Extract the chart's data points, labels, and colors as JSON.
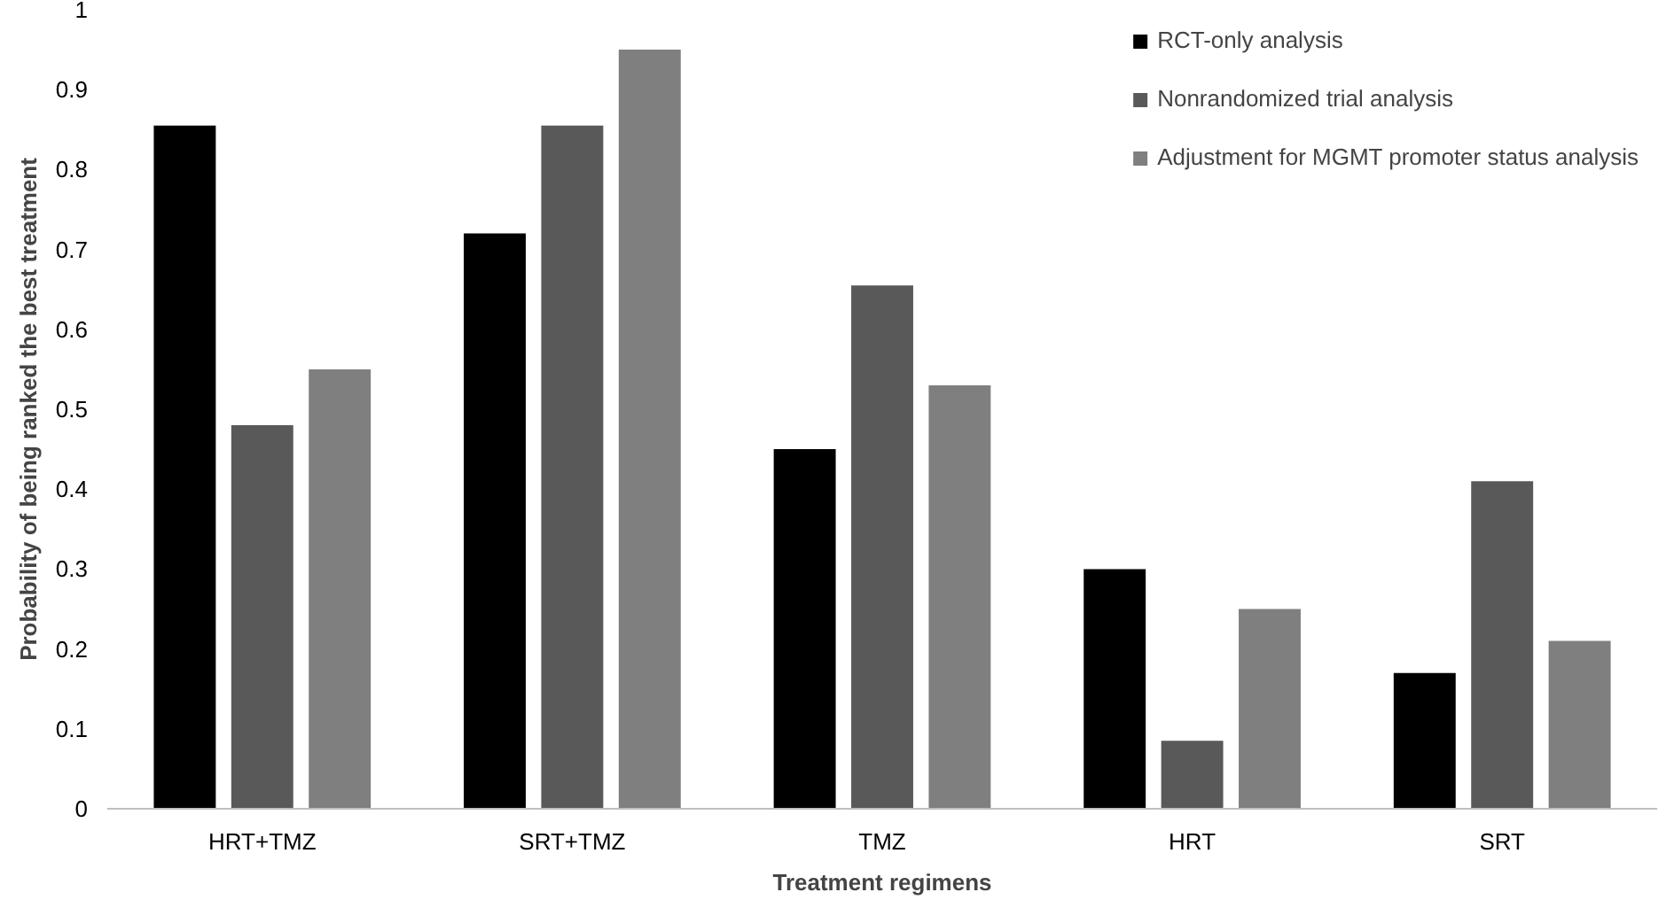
{
  "chart_data": {
    "type": "bar",
    "xlabel": "Treatment regimens",
    "ylabel": "Probability of being ranked the best treatment",
    "categories": [
      "HRT+TMZ",
      "SRT+TMZ",
      "TMZ",
      "HRT",
      "SRT"
    ],
    "series": [
      {
        "name": "RCT-only analysis",
        "color": "#000000",
        "values": [
          0.855,
          0.72,
          0.45,
          0.3,
          0.17
        ]
      },
      {
        "name": "Nonrandomized trial analysis",
        "color": "#595959",
        "values": [
          0.48,
          0.855,
          0.655,
          0.085,
          0.41
        ]
      },
      {
        "name": "Adjustment for MGMT promoter status analysis",
        "color": "#7f7f7f",
        "values": [
          0.55,
          0.95,
          0.53,
          0.25,
          0.21
        ]
      }
    ],
    "ylim": [
      0,
      1
    ],
    "yticks": [
      0,
      0.1,
      0.2,
      0.3,
      0.4,
      0.5,
      0.6,
      0.7,
      0.8,
      0.9,
      1
    ],
    "grid": false,
    "legend": "top right"
  }
}
